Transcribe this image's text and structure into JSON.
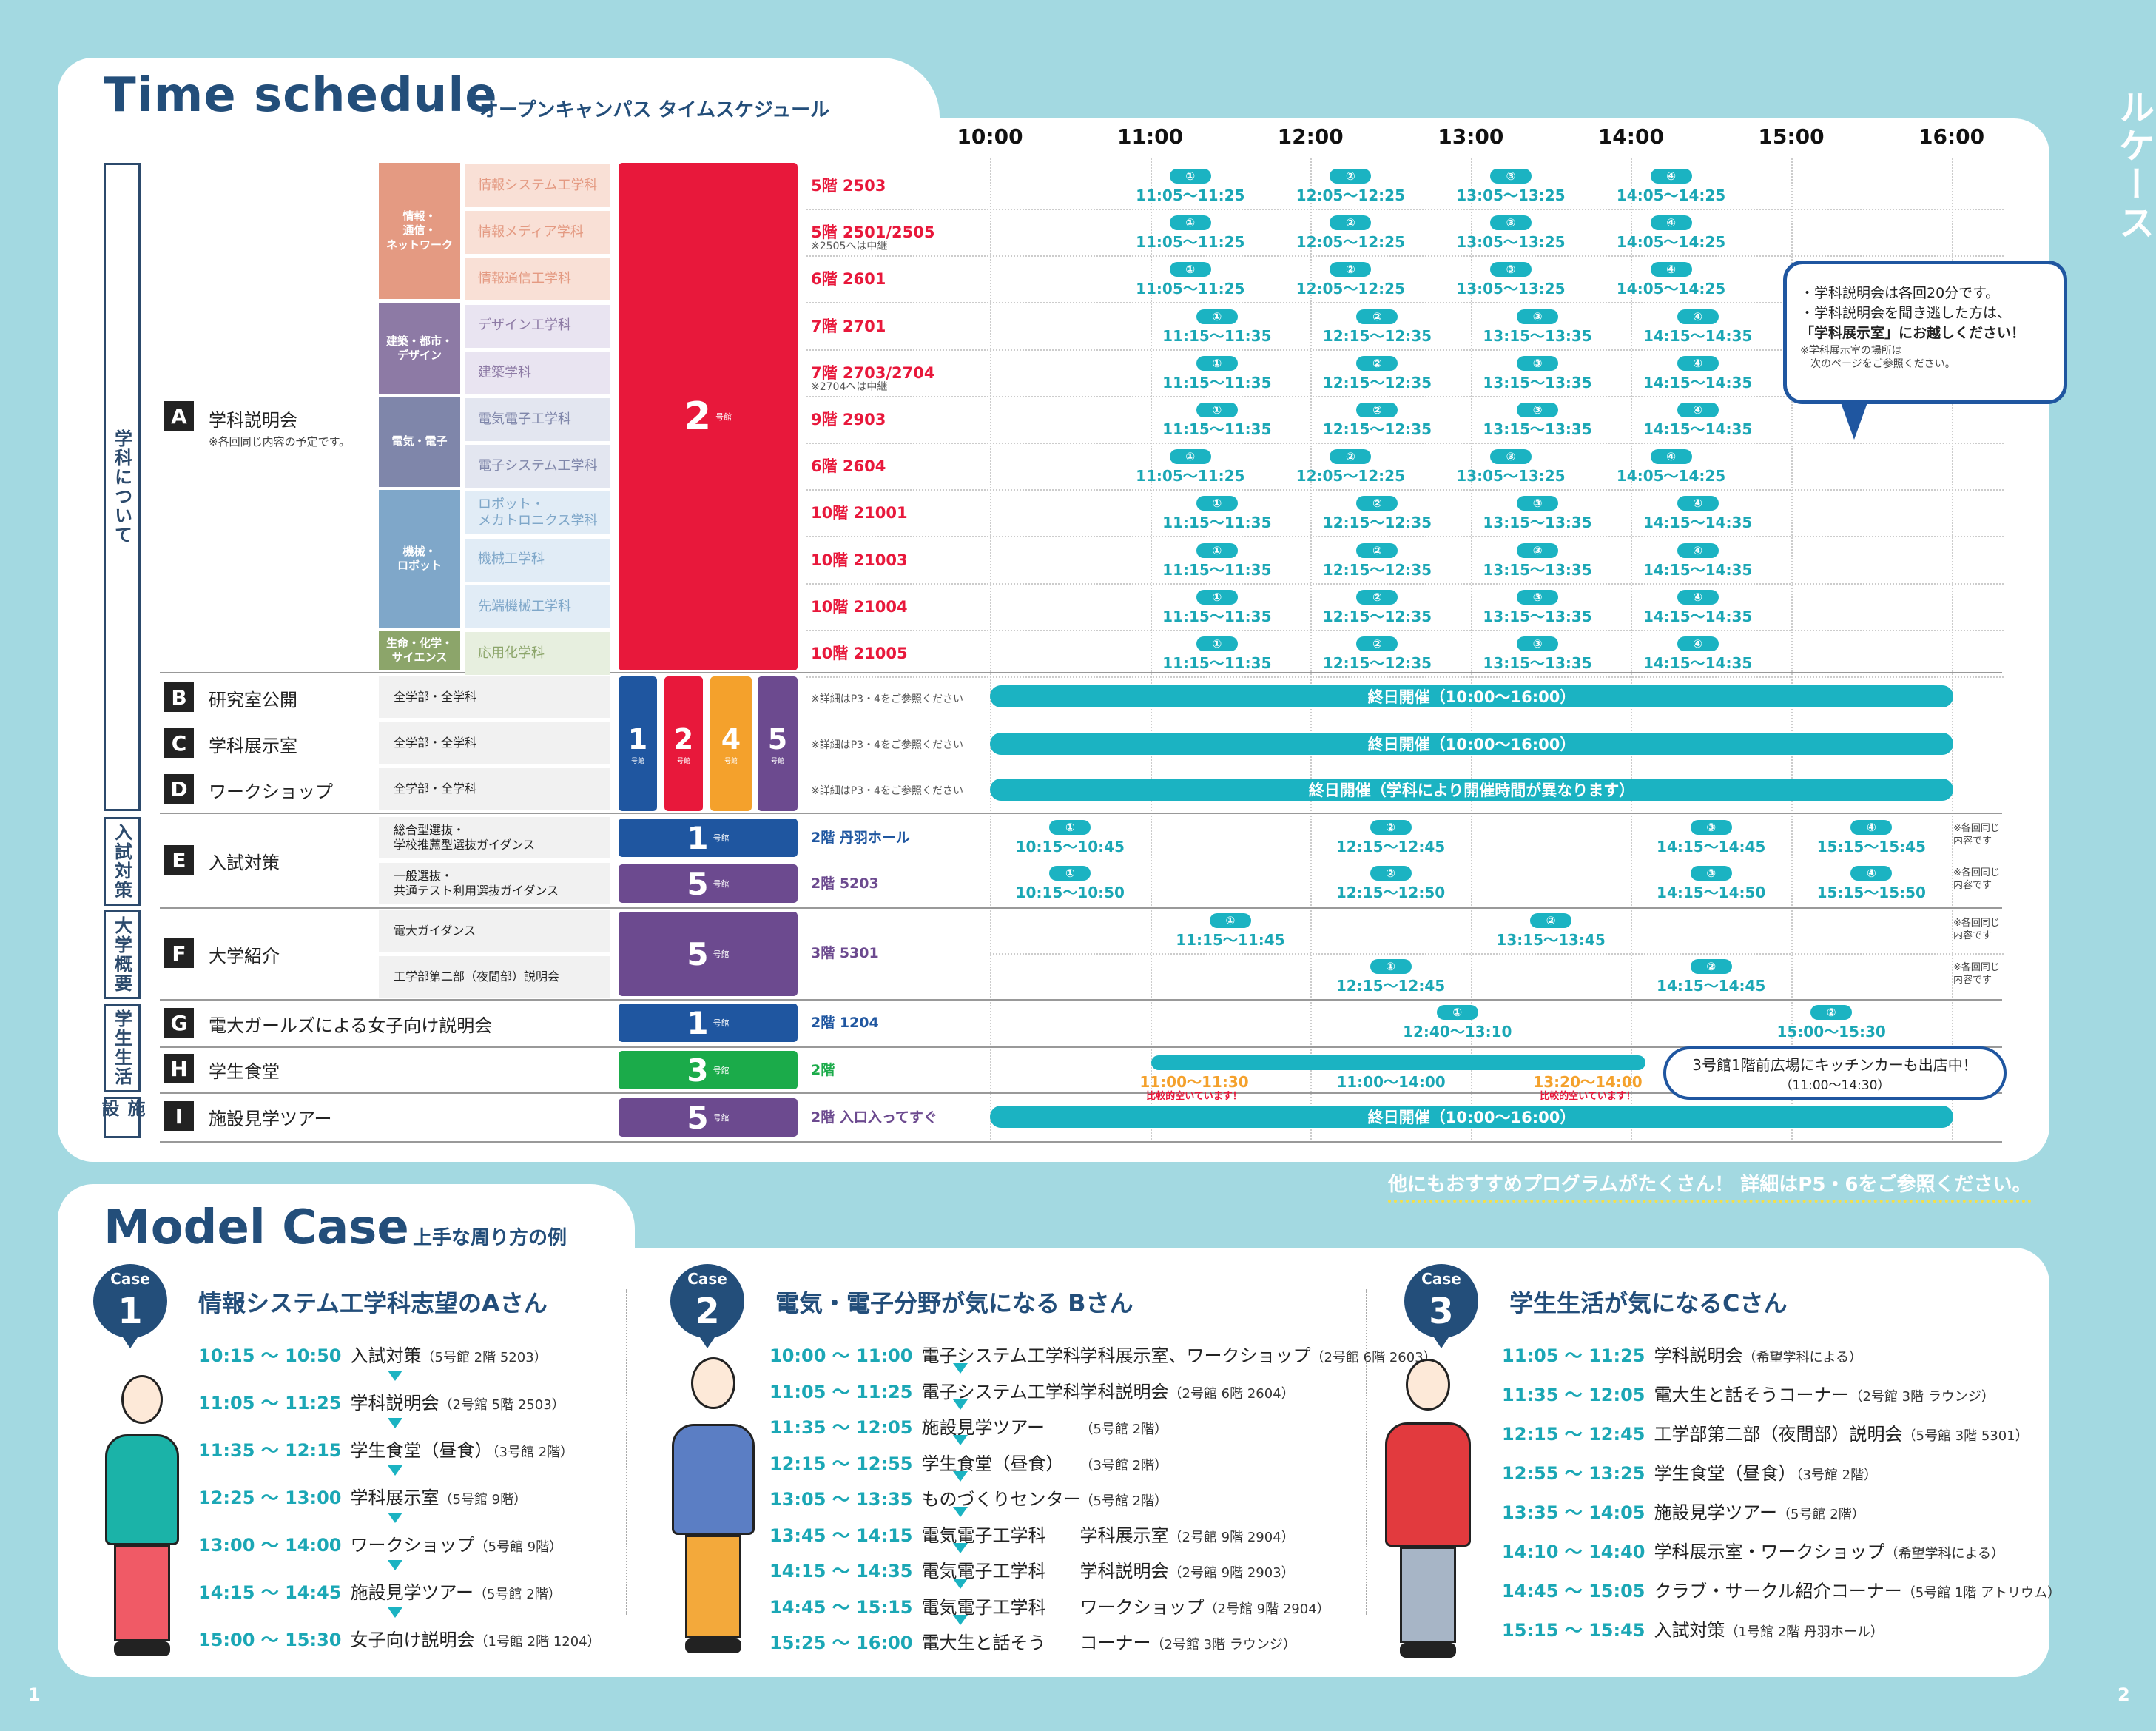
{
  "timeschedule": {
    "title": "Time schedule",
    "subtitle": "オープンキャンパス タイムスケジュール",
    "hours": [
      "10:00",
      "11:00",
      "12:00",
      "13:00",
      "14:00",
      "15:00",
      "16:00"
    ],
    "categories": [
      "学科について",
      "入試対策",
      "大学概要",
      "学生生活",
      "施設"
    ],
    "events": {
      "A": {
        "letter": "A",
        "name": "学科説明会",
        "note": "※各回同じ内容の予定です。"
      },
      "B": {
        "letter": "B",
        "name": "研究室公開"
      },
      "C": {
        "letter": "C",
        "name": "学科展示室"
      },
      "D": {
        "letter": "D",
        "name": "ワークショップ"
      },
      "E": {
        "letter": "E",
        "name": "入試対策"
      },
      "F": {
        "letter": "F",
        "name": "大学紹介"
      },
      "G": {
        "letter": "G",
        "name": "電大ガールズによる女子向け説明会"
      },
      "H": {
        "letter": "H",
        "name": "学生食堂"
      },
      "I": {
        "letter": "I",
        "name": "施設見学ツアー"
      }
    },
    "groups": [
      "情報・\n通信・\nネットワーク",
      "建築・都市・\nデザイン",
      "電気・電子",
      "機械・\nロボット",
      "生命・化学・\nサイエンス"
    ],
    "depts": [
      "情報システム工学科",
      "情報メディア学科",
      "情報通信工学科",
      "デザイン工学科",
      "建築学科",
      "電気電子工学科",
      "電子システム工学科",
      "ロボット・\nメカトロニクス学科",
      "機械工学科",
      "先端機械工学科",
      "応用化学科"
    ],
    "rooms": [
      "5階 2503",
      "5階 2501/2505",
      "6階 2601",
      "7階 2701",
      "7階 2703/2704",
      "9階 2903",
      "6階 2604",
      "10階 21001",
      "10階 21003",
      "10階 21004",
      "10階 21005"
    ],
    "room_notes": [
      "",
      "※2505へは中継",
      "",
      "",
      "※2704へは中継",
      "",
      "",
      "",
      "",
      "",
      ""
    ],
    "slotsA": {
      "n": [
        "①",
        "②",
        "③",
        "④"
      ],
      "t05": [
        "11:05〜11:25",
        "12:05〜12:25",
        "13:05〜13:25",
        "14:05〜14:25"
      ],
      "t15": [
        "11:15〜11:35",
        "12:15〜12:35",
        "13:15〜13:35",
        "14:15〜14:35"
      ]
    },
    "all_dept": "全学部・全学科",
    "ref": "※詳細はP3・4をご参照ください",
    "allday": "終日開催（10:00〜16:00）",
    "allday_ws": "終日開催（学科により開催時間が異なります）",
    "e_rows": [
      "総合型選抜・\n学校推薦型選抜ガイダンス",
      "一般選抜・\n共通テスト利用選抜ガイダンス"
    ],
    "e_rooms": [
      "2階 丹羽ホール",
      "2階 5203"
    ],
    "e_times1": [
      "10:15〜10:45",
      "12:15〜12:45",
      "14:15〜14:45",
      "15:15〜15:45"
    ],
    "e_times2": [
      "10:15〜10:50",
      "12:15〜12:50",
      "14:15〜14:50",
      "15:15〜15:50"
    ],
    "f_rows": [
      "電大ガイダンス",
      "工学部第二部（夜間部）説明会"
    ],
    "f_room": "3階 5301",
    "f_times1": [
      "11:15〜11:45",
      "13:15〜13:45"
    ],
    "f_times2": [
      "12:15〜12:45",
      "14:15〜14:45"
    ],
    "g_room": "2階 1204",
    "g_times": [
      "12:40〜13:10",
      "15:00〜15:30"
    ],
    "h_room": "2階",
    "h_times": [
      "11:00〜11:30",
      "11:00〜14:00",
      "13:20〜14:00"
    ],
    "h_note": "比較的空いています！",
    "i_room": "2階 入口入ってすぐ",
    "same": "※各回同じ\n内容です",
    "bldg": {
      "two": "2",
      "one": "1",
      "four": "4",
      "five": "5",
      "three": "3",
      "suffix": "号館"
    },
    "callout": {
      "l1": "・学科説明会は各回20分です。",
      "l2": "・学科説明会を聞き逃した方は、",
      "l3": "「学科展示室」にお越しください！",
      "l4": "※学科展示室の場所は\n　次のページをご参照ください。"
    },
    "kitchen": {
      "l1": "3号館1階前広場にキッチンカーも出店中！",
      "l2": "（11:00〜14:30）"
    },
    "footer_note": "他にもおすすめプログラムがたくさん！ 詳細はP5・6をご参照ください。"
  },
  "modelcase": {
    "title": "Model Case",
    "subtitle": "上手な周り方の例",
    "cases": [
      {
        "label": "Case",
        "num": "1",
        "title": "情報システム工学科志望のAさん",
        "rows": [
          [
            "10:15 ～ 10:50",
            "入試対策",
            "（5号館 2階 5203）"
          ],
          [
            "11:05 ～ 11:25",
            "学科説明会",
            "（2号館 5階 2503）"
          ],
          [
            "11:35 ～ 12:15",
            "学生食堂（昼食）",
            "（3号館 2階）"
          ],
          [
            "12:25 ～ 13:00",
            "学科展示室",
            "（5号館 9階）"
          ],
          [
            "13:00 ～ 14:00",
            "ワークショップ",
            "（5号館 9階）"
          ],
          [
            "14:15 ～ 14:45",
            "施設見学ツアー",
            "（5号館 2階）"
          ],
          [
            "15:00 ～ 15:30",
            "女子向け説明会",
            "（1号館 2階 1204）"
          ]
        ]
      },
      {
        "label": "Case",
        "num": "2",
        "title": "電気・電子分野が気になる Bさん",
        "rows": [
          [
            "10:00 ～ 11:00",
            "電子システム工学科",
            "学科展示室、ワークショップ",
            "（2号館 6階 2603）"
          ],
          [
            "11:05 ～ 11:25",
            "電子システム工学科",
            "学科説明会",
            "（2号館 6階 2604）"
          ],
          [
            "11:35 ～ 12:05",
            "施設見学ツアー",
            "",
            "（5号館 2階）"
          ],
          [
            "12:15 ～ 12:55",
            "学生食堂（昼食）",
            "",
            "（3号館 2階）"
          ],
          [
            "13:05 ～ 13:35",
            "ものづくりセンター",
            "",
            "（5号館 2階）"
          ],
          [
            "13:45 ～ 14:15",
            "電気電子工学科",
            "学科展示室",
            "（2号館 9階 2904）"
          ],
          [
            "14:15 ～ 14:35",
            "電気電子工学科",
            "学科説明会",
            "（2号館 9階 2903）"
          ],
          [
            "14:45 ～ 15:15",
            "電気電子工学科",
            "ワークショップ",
            "（2号館 9階 2904）"
          ],
          [
            "15:25 ～ 16:00",
            "電大生と話そう",
            "コーナー",
            "（2号館 3階 ラウンジ）"
          ]
        ]
      },
      {
        "label": "Case",
        "num": "3",
        "title": "学生生活が気になるCさん",
        "rows": [
          [
            "11:05 ～ 11:25",
            "学科説明会",
            "（希望学科による）"
          ],
          [
            "11:35 ～ 12:05",
            "電大生と話そうコーナー",
            "（2号館 3階 ラウンジ）"
          ],
          [
            "12:15 ～ 12:45",
            "工学部第二部（夜間部）説明会",
            "（5号館 3階 5301）"
          ],
          [
            "12:55 ～ 13:25",
            "学生食堂（昼食）",
            "（3号館 2階）"
          ],
          [
            "13:35 ～ 14:05",
            "施設見学ツアー",
            "（5号館 2階）"
          ],
          [
            "14:10 ～ 14:40",
            "学科展示室・ワークショップ",
            "（希望学科による）"
          ],
          [
            "14:45 ～ 15:05",
            "クラブ・サークル紹介コーナー",
            "（5号館 1階 アトリウム）"
          ],
          [
            "15:15 ～ 15:45",
            "入試対策",
            "（1号館 2階 丹羽ホール）"
          ]
        ]
      }
    ]
  },
  "side_title": "オープンキャンパス タイムスケジュール・モデルケース",
  "page_left": "1",
  "page_right": "2"
}
